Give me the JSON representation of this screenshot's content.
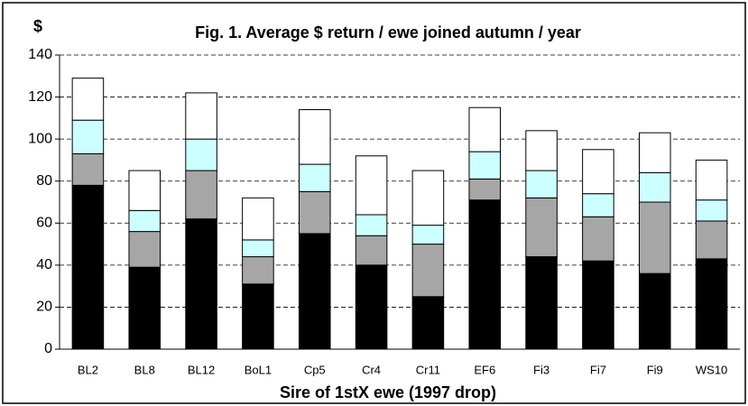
{
  "chart_data": {
    "type": "stacked-bar",
    "title": "Fig. 1. Average $ return / ewe joined autumn / year",
    "y_label": "$",
    "x_label": "Sire of 1stX ewe (1997 drop)",
    "categories": [
      "BL2",
      "BL8",
      "BL12",
      "BoL1",
      "Cp5",
      "Cr4",
      "Cr11",
      "EF6",
      "Fi3",
      "Fi7",
      "Fi9",
      "WS10"
    ],
    "series": [
      {
        "color": "#000000",
        "values": [
          78,
          39,
          62,
          31,
          55,
          40,
          25,
          71,
          44,
          42,
          36,
          43
        ]
      },
      {
        "color": "#a6a6a6",
        "values": [
          15,
          17,
          23,
          13,
          20,
          14,
          25,
          10,
          28,
          21,
          34,
          18
        ]
      },
      {
        "color": "#ccffff",
        "values": [
          16,
          10,
          15,
          8,
          13,
          10,
          9,
          13,
          13,
          11,
          14,
          10
        ]
      },
      {
        "color": "#ffffff",
        "values": [
          20,
          19,
          22,
          20,
          26,
          28,
          26,
          21,
          19,
          21,
          19,
          19
        ]
      }
    ],
    "ylim": [
      0,
      140
    ],
    "yticks": [
      0,
      20,
      40,
      60,
      80,
      100,
      120,
      140
    ],
    "grid": true
  }
}
